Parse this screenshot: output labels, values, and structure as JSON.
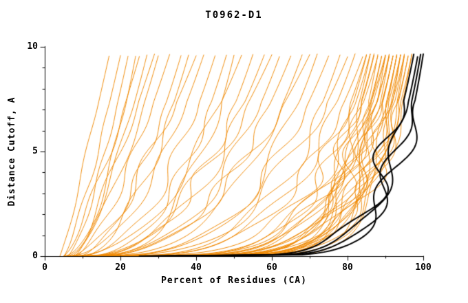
{
  "chart_data": {
    "type": "line",
    "title": "T0962-D1",
    "xlabel": "Percent of Residues (CA)",
    "ylabel": "Distance Cutoff, A",
    "xlim": [
      0,
      100
    ],
    "ylim": [
      0,
      10
    ],
    "xticks": [
      0,
      20,
      40,
      60,
      80,
      100
    ],
    "yticks": [
      0,
      5,
      10
    ],
    "x_minor_step": 10,
    "y_minor_step": 1,
    "grid": false,
    "legend": "none",
    "y_top": 9.6,
    "colors": {
      "orange": "#ef8800",
      "black": "#000000",
      "axis": "#000000"
    },
    "curve_model": "x(t) = x0 + (x1-x0)*t^(1/k); y(t) = t*y_top; t in [0,1]",
    "series": [
      {
        "c": "orange",
        "x0": 4,
        "x1": 17,
        "k": 1.1
      },
      {
        "c": "orange",
        "x0": 5,
        "x1": 20,
        "k": 1.25
      },
      {
        "c": "orange",
        "x0": 6,
        "x1": 22,
        "k": 1.4
      },
      {
        "c": "orange",
        "x0": 5,
        "x1": 25,
        "k": 1.3
      },
      {
        "c": "orange",
        "x0": 7,
        "x1": 27,
        "k": 1.5
      },
      {
        "c": "orange",
        "x0": 6,
        "x1": 30,
        "k": 1.6
      },
      {
        "c": "orange",
        "x0": 8,
        "x1": 33,
        "k": 1.45
      },
      {
        "c": "orange",
        "x0": 9,
        "x1": 36,
        "k": 1.7
      },
      {
        "c": "orange",
        "x0": 7,
        "x1": 40,
        "k": 1.55
      },
      {
        "c": "orange",
        "x0": 10,
        "x1": 38,
        "k": 1.8
      },
      {
        "c": "orange",
        "x0": 5,
        "x1": 24,
        "k": 1.9
      },
      {
        "c": "orange",
        "x0": 8,
        "x1": 29,
        "k": 1.2
      },
      {
        "c": "orange",
        "x0": 6,
        "x1": 42,
        "k": 2.0
      },
      {
        "c": "orange",
        "x0": 8,
        "x1": 45,
        "k": 2.2
      },
      {
        "c": "orange",
        "x0": 10,
        "x1": 48,
        "k": 2.4
      },
      {
        "c": "orange",
        "x0": 7,
        "x1": 52,
        "k": 2.1
      },
      {
        "c": "orange",
        "x0": 9,
        "x1": 55,
        "k": 2.6
      },
      {
        "c": "orange",
        "x0": 11,
        "x1": 58,
        "k": 2.3
      },
      {
        "c": "orange",
        "x0": 8,
        "x1": 62,
        "k": 2.8
      },
      {
        "c": "orange",
        "x0": 12,
        "x1": 65,
        "k": 2.5
      },
      {
        "c": "orange",
        "x0": 10,
        "x1": 68,
        "k": 3.0
      },
      {
        "c": "orange",
        "x0": 13,
        "x1": 70,
        "k": 2.2
      },
      {
        "c": "orange",
        "x0": 9,
        "x1": 50,
        "k": 3.2
      },
      {
        "c": "orange",
        "x0": 11,
        "x1": 60,
        "k": 2.0
      },
      {
        "c": "orange",
        "x0": 10,
        "x1": 72,
        "k": 3.4
      },
      {
        "c": "orange",
        "x0": 12,
        "x1": 75,
        "k": 3.0
      },
      {
        "c": "orange",
        "x0": 14,
        "x1": 78,
        "k": 3.6
      },
      {
        "c": "orange",
        "x0": 11,
        "x1": 80,
        "k": 3.2
      },
      {
        "c": "orange",
        "x0": 13,
        "x1": 82,
        "k": 3.8
      },
      {
        "c": "orange",
        "x0": 15,
        "x1": 84,
        "k": 3.5
      },
      {
        "c": "orange",
        "x0": 5,
        "x1": 85,
        "k": 5.0
      },
      {
        "c": "orange",
        "x0": 7,
        "x1": 86,
        "k": 5.5
      },
      {
        "c": "orange",
        "x0": 9,
        "x1": 87,
        "k": 6.0
      },
      {
        "c": "orange",
        "x0": 11,
        "x1": 88,
        "k": 5.2
      },
      {
        "c": "orange",
        "x0": 13,
        "x1": 89,
        "k": 6.5
      },
      {
        "c": "orange",
        "x0": 15,
        "x1": 90,
        "k": 5.8
      },
      {
        "c": "orange",
        "x0": 17,
        "x1": 91,
        "k": 6.2
      },
      {
        "c": "orange",
        "x0": 19,
        "x1": 92,
        "k": 7.0
      },
      {
        "c": "orange",
        "x0": 21,
        "x1": 93,
        "k": 6.8
      },
      {
        "c": "orange",
        "x0": 23,
        "x1": 94,
        "k": 7.5
      },
      {
        "c": "orange",
        "x0": 6,
        "x1": 95,
        "k": 7.2
      },
      {
        "c": "orange",
        "x0": 8,
        "x1": 96,
        "k": 8.0
      },
      {
        "c": "orange",
        "x0": 10,
        "x1": 97,
        "k": 7.8
      },
      {
        "c": "orange",
        "x0": 12,
        "x1": 85,
        "k": 5.4
      },
      {
        "c": "orange",
        "x0": 14,
        "x1": 86,
        "k": 6.6
      },
      {
        "c": "orange",
        "x0": 16,
        "x1": 87,
        "k": 5.6
      },
      {
        "c": "orange",
        "x0": 18,
        "x1": 88,
        "k": 7.4
      },
      {
        "c": "orange",
        "x0": 20,
        "x1": 89,
        "k": 6.4
      },
      {
        "c": "orange",
        "x0": 22,
        "x1": 90,
        "k": 8.2
      },
      {
        "c": "orange",
        "x0": 24,
        "x1": 91,
        "k": 7.6
      },
      {
        "c": "orange",
        "x0": 26,
        "x1": 92,
        "k": 6.0
      },
      {
        "c": "orange",
        "x0": 7,
        "x1": 93,
        "k": 8.5
      },
      {
        "c": "orange",
        "x0": 9,
        "x1": 94,
        "k": 7.0
      },
      {
        "c": "orange",
        "x0": 11,
        "x1": 95,
        "k": 8.8
      },
      {
        "c": "orange",
        "x0": 13,
        "x1": 96,
        "k": 8.4
      },
      {
        "c": "orange",
        "x0": 15,
        "x1": 97,
        "k": 9.0
      },
      {
        "c": "orange",
        "x0": 17,
        "x1": 90,
        "k": 5.0
      },
      {
        "c": "orange",
        "x0": 19,
        "x1": 91,
        "k": 5.5
      },
      {
        "c": "orange",
        "x0": 21,
        "x1": 92,
        "k": 6.2
      },
      {
        "c": "orange",
        "x0": 23,
        "x1": 93,
        "k": 7.8
      },
      {
        "c": "orange",
        "x0": 25,
        "x1": 94,
        "k": 8.6
      },
      {
        "c": "orange",
        "x0": 27,
        "x1": 95,
        "k": 9.2
      },
      {
        "c": "black",
        "x0": 25,
        "x1": 97.5,
        "k": 7.0
      },
      {
        "c": "black",
        "x0": 26,
        "x1": 98.5,
        "k": 7.5
      },
      {
        "c": "black",
        "x0": 27,
        "x1": 99.3,
        "k": 8.0
      },
      {
        "c": "black",
        "x0": 28,
        "x1": 100,
        "k": 8.5
      }
    ]
  }
}
